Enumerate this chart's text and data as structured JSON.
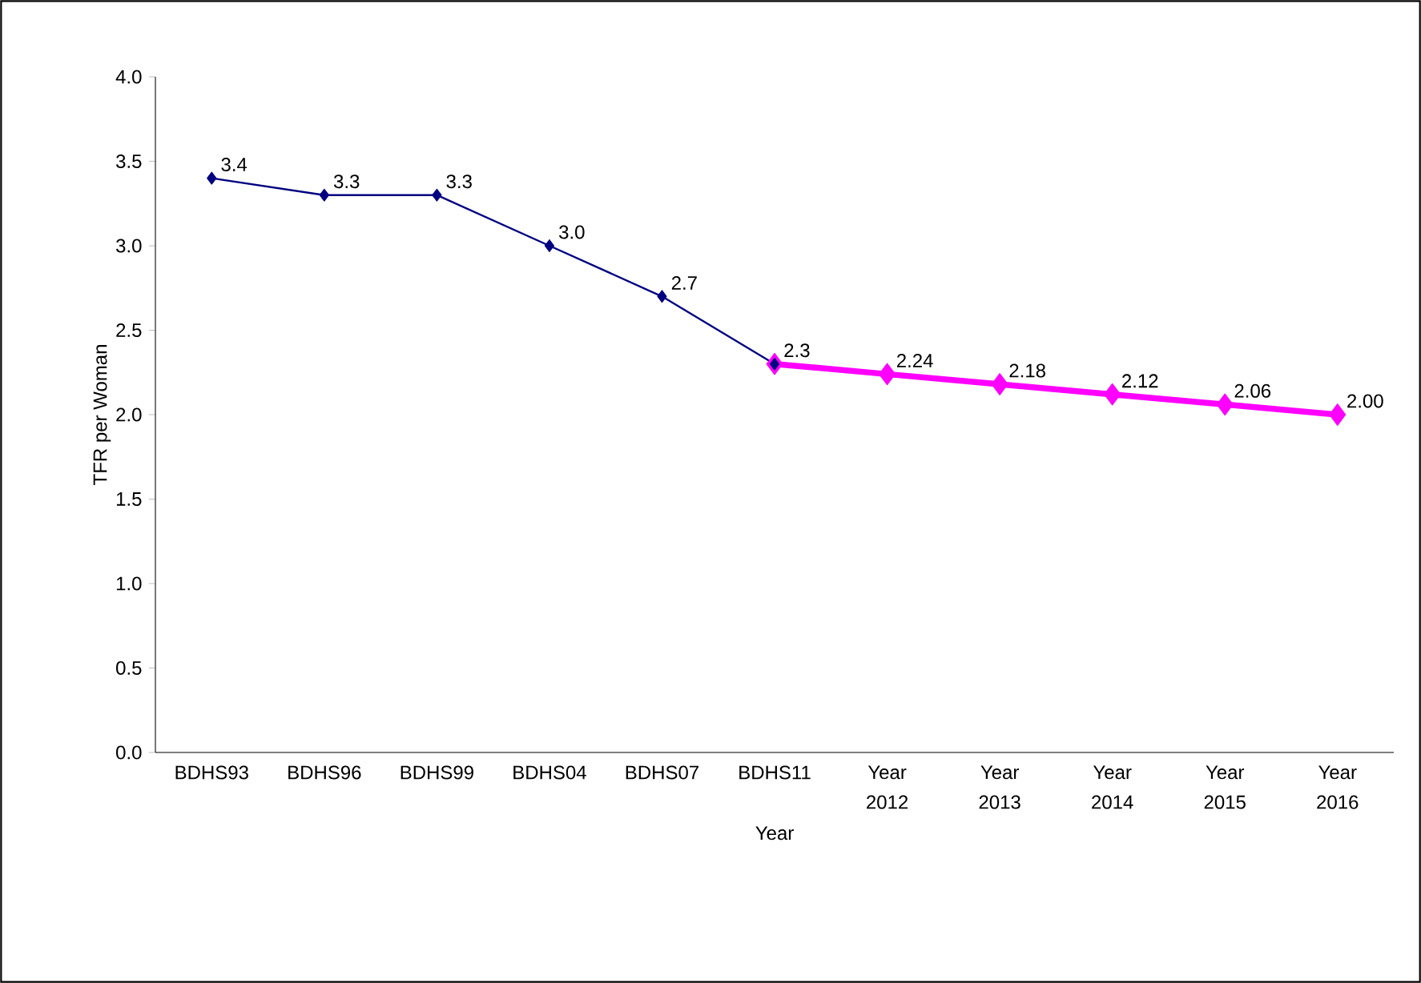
{
  "chart_data": {
    "type": "line",
    "xlabel": "Year",
    "ylabel": "TFR per Woman",
    "categories": [
      "BDHS93",
      "BDHS96",
      "BDHS99",
      "BDHS04",
      "BDHS07",
      "BDHS11",
      "Year 2012",
      "Year 2013",
      "Year 2014",
      "Year 2015",
      "Year 2016"
    ],
    "series": [
      {
        "color": "#ff00ff",
        "values": [
          null,
          null,
          null,
          null,
          null,
          2.3,
          2.24,
          2.18,
          2.12,
          2.06,
          2.0
        ],
        "value_labels": [
          null,
          null,
          null,
          null,
          null,
          null,
          "2.24",
          "2.18",
          "2.12",
          "2.06",
          "2.00"
        ]
      },
      {
        "color": "#000080",
        "values": [
          3.4,
          3.3,
          3.3,
          3.0,
          2.7,
          2.3,
          null,
          null,
          null,
          null,
          null
        ],
        "value_labels": [
          "3.4",
          "3.3",
          "3.3",
          "3.0",
          "2.7",
          "2.3",
          null,
          null,
          null,
          null,
          null
        ]
      }
    ],
    "ylim": [
      0,
      4
    ],
    "yticks": [
      {
        "value": 0,
        "label": "0.0"
      },
      {
        "value": 0.5,
        "label": "0.5"
      },
      {
        "value": 1,
        "label": "1.0"
      },
      {
        "value": 1.5,
        "label": "1.5"
      },
      {
        "value": 2,
        "label": "2.0"
      },
      {
        "value": 2.5,
        "label": "2.5"
      },
      {
        "value": 3,
        "label": "3.0"
      },
      {
        "value": 3.5,
        "label": "3.5"
      },
      {
        "value": 4,
        "label": "4.0"
      }
    ],
    "grid": false,
    "marker": "diamond",
    "line_style": "solid"
  }
}
